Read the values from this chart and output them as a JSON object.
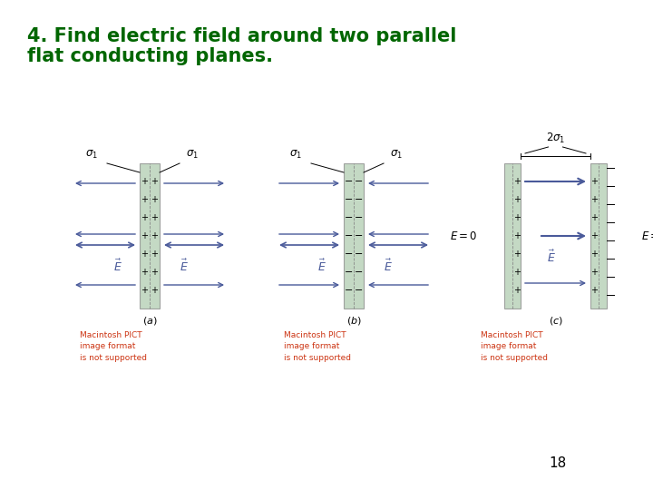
{
  "title_line1": "4. Find electric field around two parallel",
  "title_line2": "flat conducting planes.",
  "title_color": "#006600",
  "title_fontsize": 15,
  "background_color": "#ffffff",
  "plane_color": "#b0cdb0",
  "plane_alpha": 0.75,
  "arrow_color": "#4a5a9a",
  "text_color": "#000000",
  "red_text_color": "#cc3311",
  "page_number": "18"
}
